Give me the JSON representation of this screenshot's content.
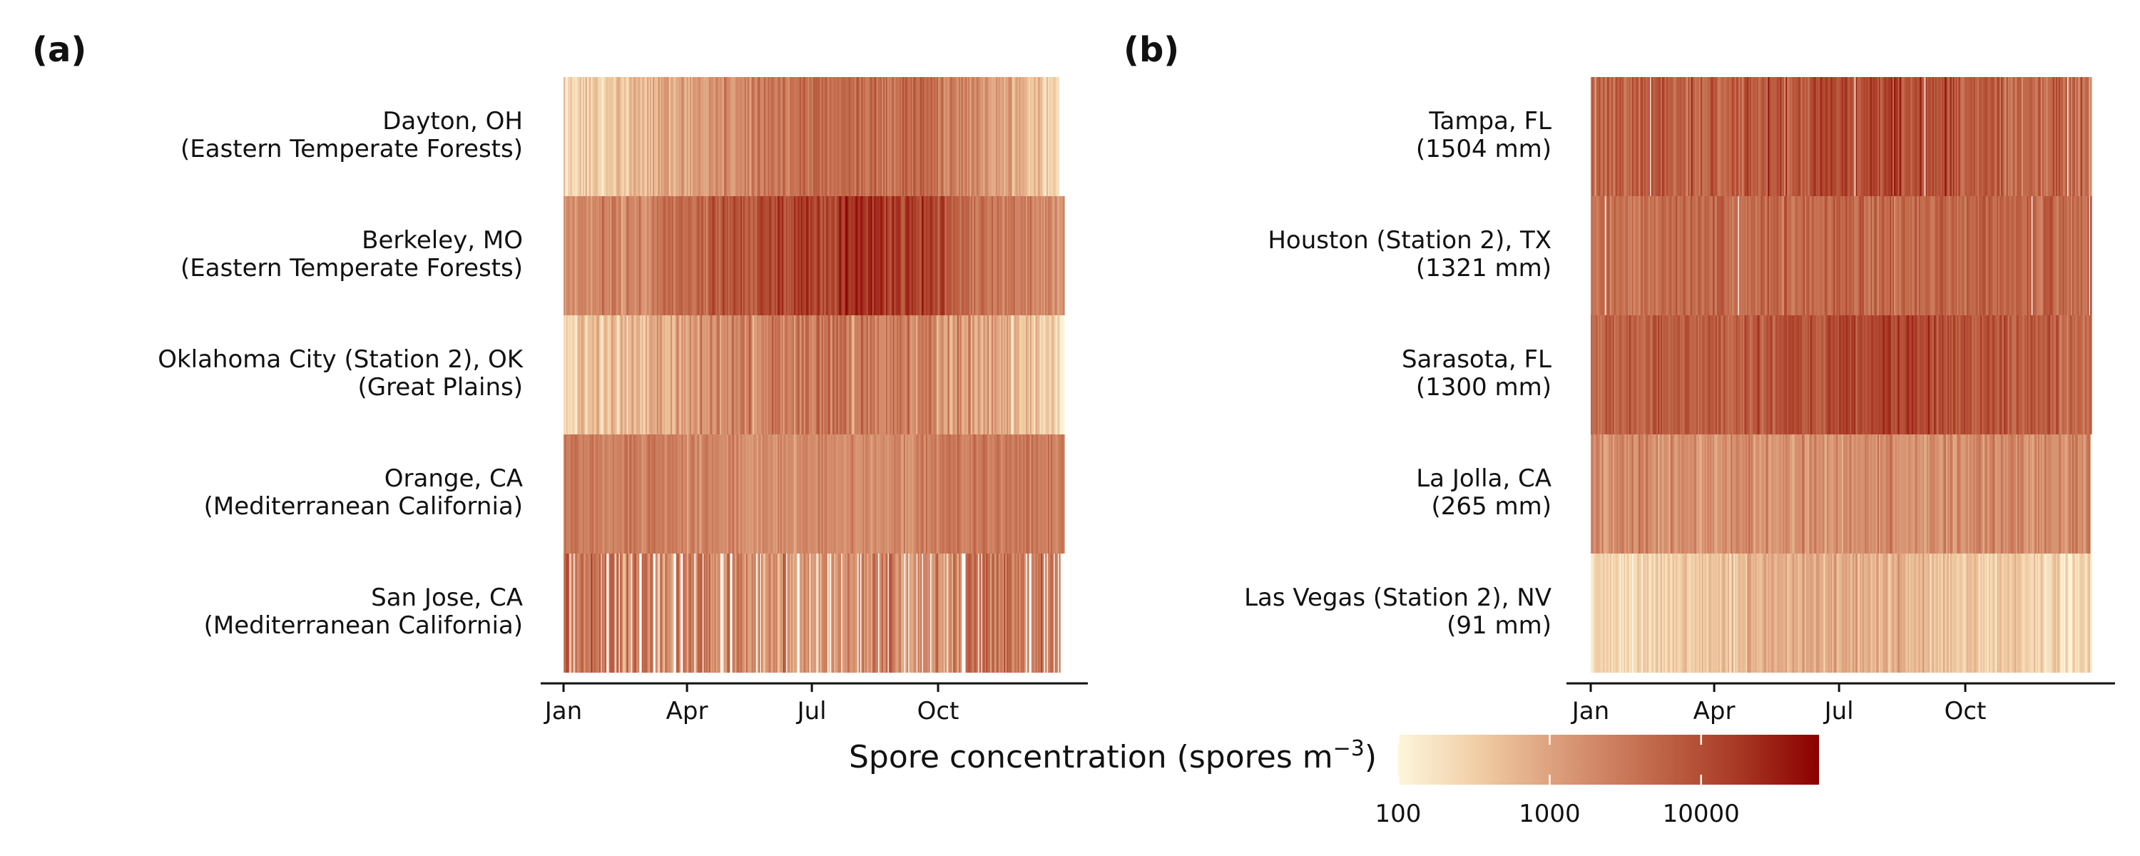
{
  "chart_data": [
    {
      "type": "heatmap",
      "panel_label": "(a)",
      "x_ticks": [
        "Jan",
        "Apr",
        "Jul",
        "Oct"
      ],
      "rows": [
        {
          "line1": "Dayton, OH",
          "line2": "(Eastern Temperate Forests)",
          "profile": [
            [
              1,
              200
            ],
            [
              50,
              500
            ],
            [
              100,
              1300
            ],
            [
              140,
              2500
            ],
            [
              180,
              4200
            ],
            [
              220,
              5000
            ],
            [
              260,
              4000
            ],
            [
              290,
              2500
            ],
            [
              320,
              1000
            ],
            [
              350,
              400
            ],
            [
              365,
              220
            ]
          ],
          "noise": 0.22,
          "gaps": 0,
          "start": 1,
          "end": 361
        },
        {
          "line1": "Berkeley, MO",
          "line2": "(Eastern Temperate Forests)",
          "profile": [
            [
              1,
              1600
            ],
            [
              60,
              2500
            ],
            [
              110,
              6000
            ],
            [
              150,
              11000
            ],
            [
              190,
              14000
            ],
            [
              225,
              24000
            ],
            [
              250,
              16000
            ],
            [
              290,
              6000
            ],
            [
              330,
              2500
            ],
            [
              365,
              1600
            ]
          ],
          "noise": 0.22,
          "gaps": 0,
          "start": 1,
          "end": 365
        },
        {
          "line1": "Oklahoma City (Station 2), OK",
          "line2": "(Great Plains)",
          "profile": [
            [
              1,
              250
            ],
            [
              40,
              450
            ],
            [
              90,
              1500
            ],
            [
              140,
              2400
            ],
            [
              200,
              2800
            ],
            [
              250,
              2500
            ],
            [
              300,
              1200
            ],
            [
              340,
              450
            ],
            [
              365,
              300
            ]
          ],
          "noise": 0.28,
          "gaps": 0,
          "start": 1,
          "end": 365
        },
        {
          "line1": "Orange, CA",
          "line2": "(Mediterranean California)",
          "profile": [
            [
              1,
              3200
            ],
            [
              60,
              2500
            ],
            [
              120,
              1800
            ],
            [
              180,
              1600
            ],
            [
              240,
              1900
            ],
            [
              300,
              2800
            ],
            [
              365,
              3200
            ]
          ],
          "noise": 0.18,
          "gaps": 0,
          "start": 1,
          "end": 365
        },
        {
          "line1": "San Jose, CA",
          "line2": "(Mediterranean California)",
          "profile": [
            [
              1,
              3500
            ],
            [
              100,
              2500
            ],
            [
              200,
              1600
            ],
            [
              300,
              3000
            ],
            [
              365,
              3500
            ]
          ],
          "noise": 0.32,
          "gaps": 0.14,
          "start": 1,
          "end": 362
        }
      ]
    },
    {
      "type": "heatmap",
      "panel_label": "(b)",
      "x_ticks": [
        "Jan",
        "Apr",
        "Jul",
        "Oct"
      ],
      "rows": [
        {
          "line1": "Tampa, FL",
          "line2": "(1504 mm)",
          "profile": [
            [
              1,
              4500
            ],
            [
              80,
              5500
            ],
            [
              150,
              7500
            ],
            [
              190,
              12000
            ],
            [
              240,
              9000
            ],
            [
              300,
              6000
            ],
            [
              365,
              4000
            ]
          ],
          "noise": 0.26,
          "gaps": 0.02,
          "start": 1,
          "end": 365
        },
        {
          "line1": "Houston (Station 2), TX",
          "line2": "(1321 mm)",
          "profile": [
            [
              1,
              4000
            ],
            [
              100,
              4500
            ],
            [
              180,
              5000
            ],
            [
              260,
              4800
            ],
            [
              365,
              4500
            ]
          ],
          "noise": 0.2,
          "gaps": 0.01,
          "start": 1,
          "end": 365
        },
        {
          "line1": "Sarasota, FL",
          "line2": "(1300 mm)",
          "profile": [
            [
              1,
              5500
            ],
            [
              80,
              6000
            ],
            [
              150,
              8000
            ],
            [
              215,
              14000
            ],
            [
              270,
              9000
            ],
            [
              330,
              6000
            ],
            [
              365,
              5500
            ]
          ],
          "noise": 0.2,
          "gaps": 0,
          "start": 1,
          "end": 365
        },
        {
          "line1": "La Jolla, CA",
          "line2": "(265 mm)",
          "profile": [
            [
              1,
              1800
            ],
            [
              120,
              1600
            ],
            [
              200,
              1500
            ],
            [
              280,
              1800
            ],
            [
              365,
              2000
            ]
          ],
          "noise": 0.2,
          "gaps": 0,
          "start": 1,
          "end": 364
        },
        {
          "line1": "Las Vegas (Station 2), NV",
          "line2": "(91 mm)",
          "profile": [
            [
              1,
              220
            ],
            [
              40,
              260
            ],
            [
              70,
              350
            ],
            [
              120,
              600
            ],
            [
              150,
              750
            ],
            [
              200,
              700
            ],
            [
              250,
              500
            ],
            [
              300,
              330
            ],
            [
              365,
              220
            ]
          ],
          "noise": 0.2,
          "gaps": 0,
          "start": 1,
          "end": 365
        }
      ]
    }
  ],
  "colorbar": {
    "title": "Spore concentration (spores m",
    "title_sup": "−3",
    "title_end": ")",
    "ticks": [
      "100",
      "1000",
      "10000"
    ],
    "tick_values": [
      100,
      1000,
      10000
    ],
    "min": 100,
    "max": 60000,
    "colors": [
      "#fdf6dc",
      "#f0cba2",
      "#d99877",
      "#c26a4b",
      "#a93a26",
      "#8b0000"
    ]
  }
}
